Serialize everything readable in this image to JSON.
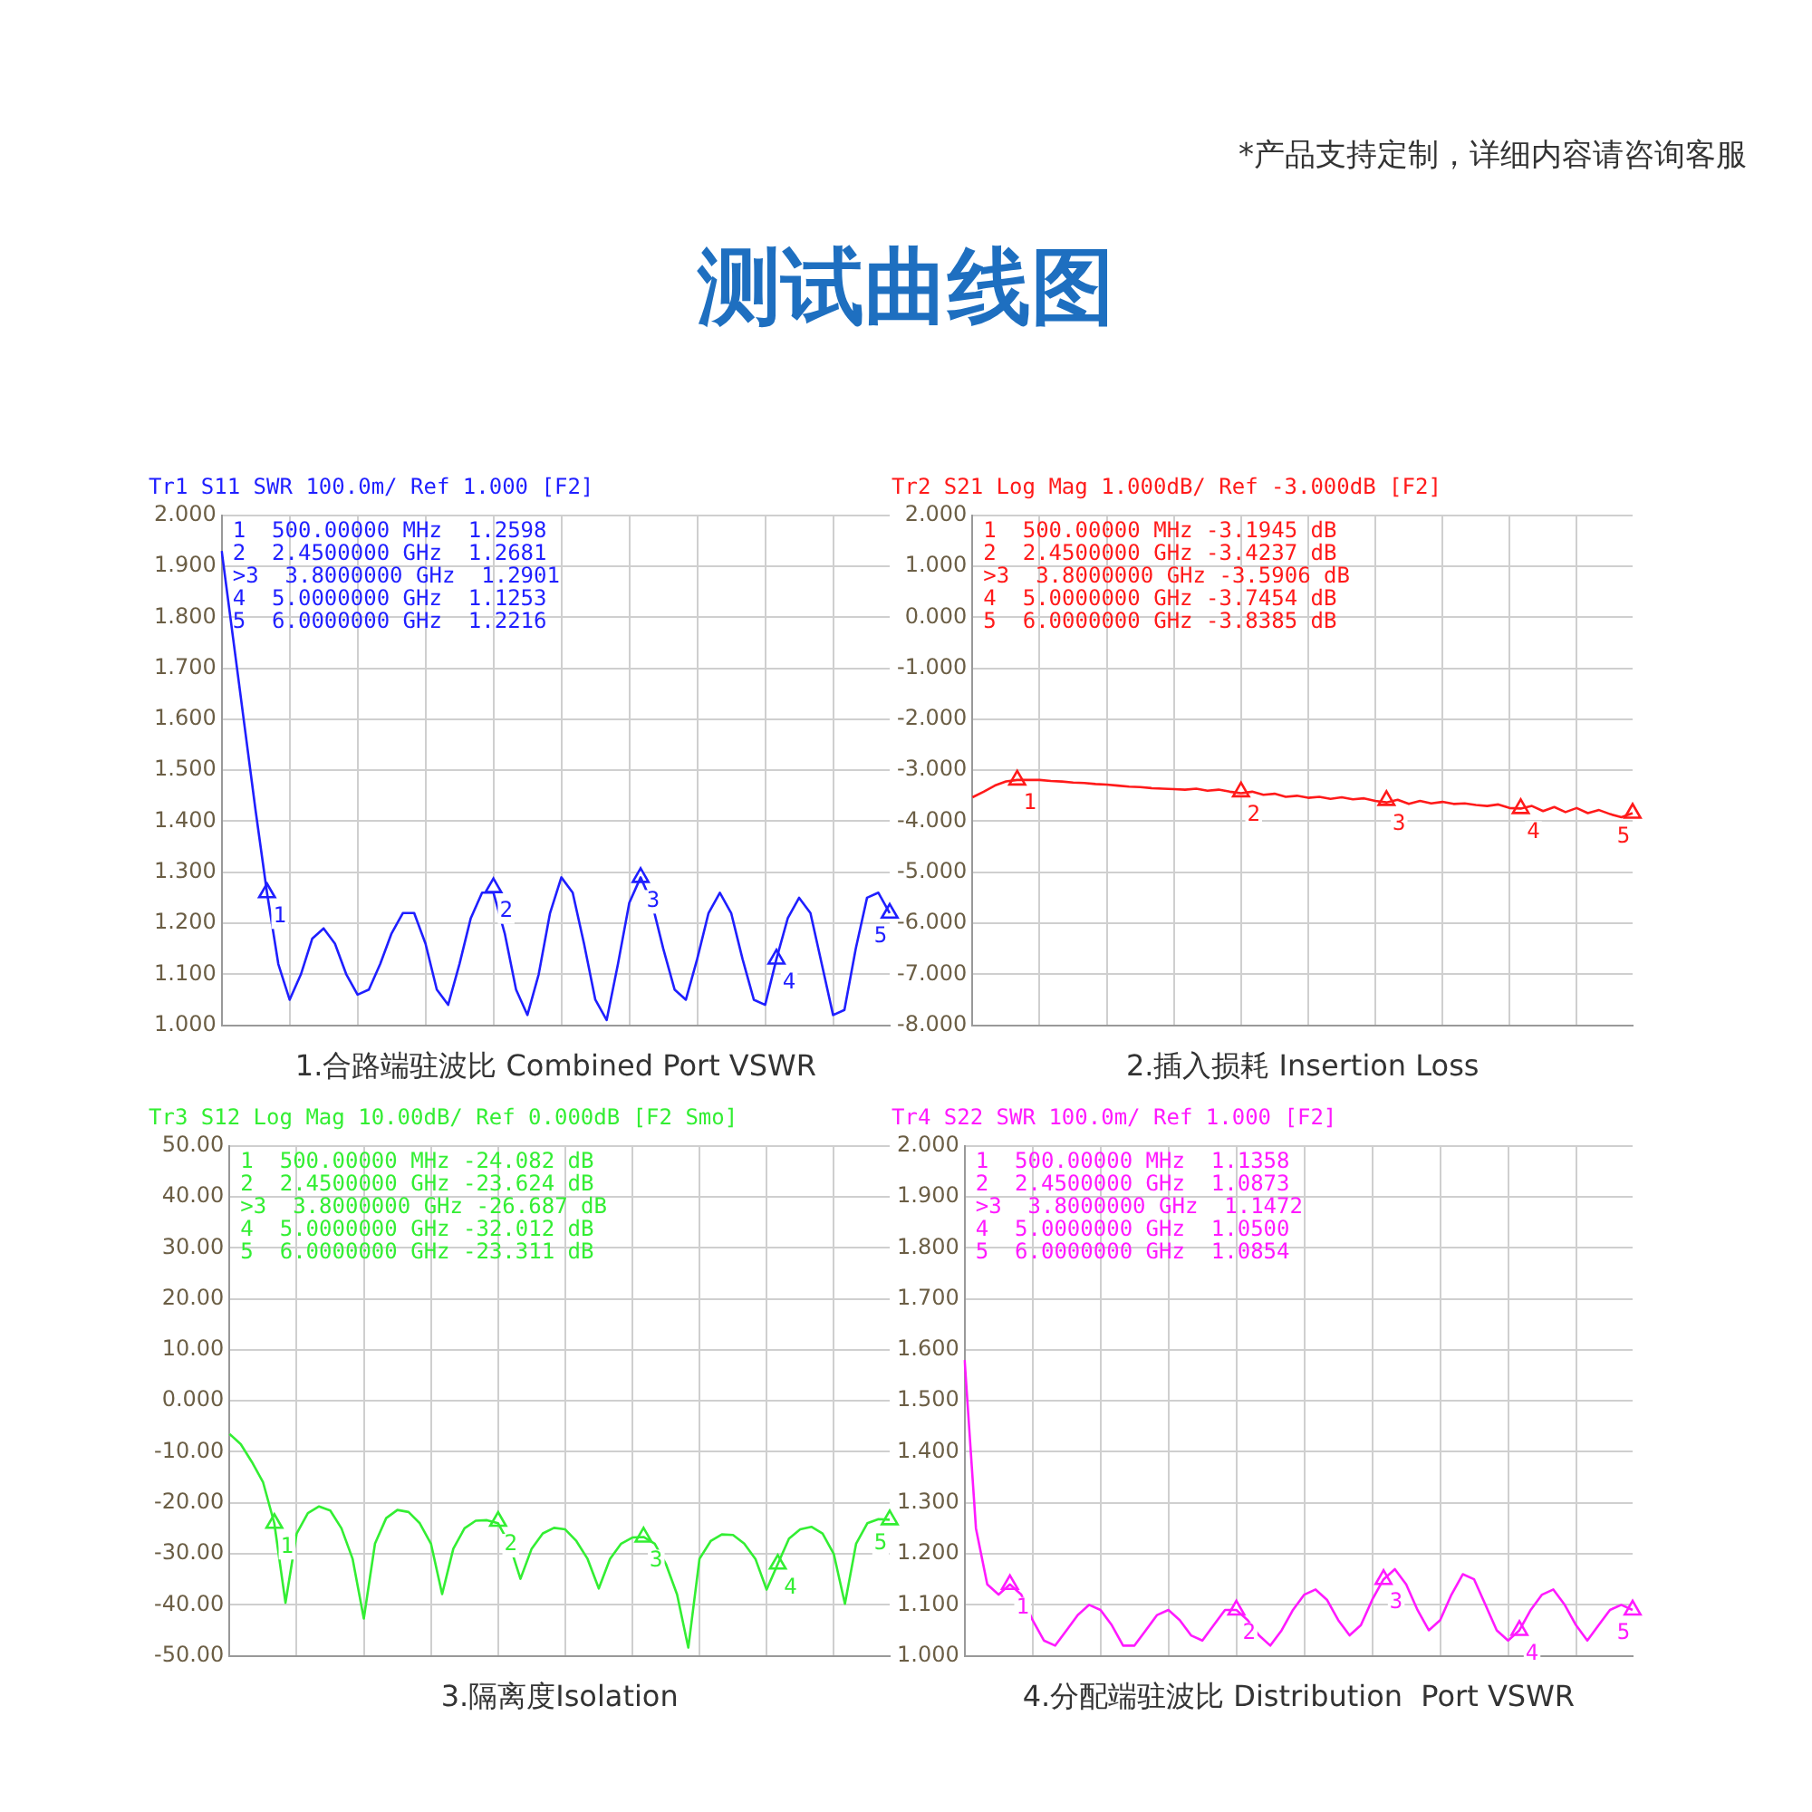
{
  "chart_data": [
    {
      "type": "other",
      "title": "测试曲线图",
      "annotations": [
        "*产品支持定制，详细内容请咨询客服"
      ]
    },
    {
      "type": "line",
      "title": "Tr1 S11 SWR 100.0m/ Ref 1.000 [F2]",
      "xlabel": "1.合路端驻波比 Combined Port VSWR",
      "tick_labels": "y",
      "grid": true,
      "categories": [
        null,
        null,
        null,
        null,
        null,
        null,
        null,
        null,
        null,
        null,
        null,
        null,
        null,
        null,
        null,
        null,
        null,
        null,
        null,
        null,
        null,
        null,
        null,
        null,
        null,
        null,
        null,
        null,
        null,
        null,
        null,
        null,
        null,
        null,
        null,
        null,
        null,
        null,
        null,
        null,
        null,
        null,
        null,
        null,
        null,
        null,
        null,
        null,
        null,
        null,
        null,
        null,
        null,
        null,
        null,
        null,
        null,
        null,
        null,
        null
      ],
      "ylim": [
        1,
        2
      ],
      "yticks": [
        {
          "value": 1,
          "label": "1.000"
        },
        {
          "value": 1.1,
          "label": "1.100"
        },
        {
          "value": 1.2,
          "label": "1.200"
        },
        {
          "value": 1.3,
          "label": "1.300"
        },
        {
          "value": 1.4,
          "label": "1.400"
        },
        {
          "value": 1.5,
          "label": "1.500"
        },
        {
          "value": 1.6,
          "label": "1.600"
        },
        {
          "value": 1.7,
          "label": "1.700"
        },
        {
          "value": 1.8,
          "label": "1.800"
        },
        {
          "value": 1.9,
          "label": "1.900"
        },
        {
          "value": 2,
          "label": "2.000"
        }
      ],
      "series": [
        {
          "color": "#1f1fff",
          "values": [
            1.93,
            1.76,
            1.59,
            1.42,
            1.26,
            1.12,
            1.05,
            1.1,
            1.17,
            1.19,
            1.16,
            1.1,
            1.06,
            1.07,
            1.12,
            1.18,
            1.22,
            1.22,
            1.16,
            1.07,
            1.04,
            1.12,
            1.21,
            1.26,
            1.26,
            1.18,
            1.07,
            1.02,
            1.1,
            1.22,
            1.29,
            1.26,
            1.16,
            1.05,
            1.01,
            1.12,
            1.24,
            1.29,
            1.24,
            1.15,
            1.07,
            1.05,
            1.13,
            1.22,
            1.26,
            1.22,
            1.13,
            1.05,
            1.04,
            1.13,
            1.21,
            1.25,
            1.22,
            1.12,
            1.02,
            1.03,
            1.15,
            1.25,
            1.26,
            1.22
          ]
        },
        {
          "type": "scatter",
          "marker": "triangle",
          "name": "1",
          "color": "#1f1fff",
          "values": [
            null,
            null,
            null,
            null,
            1.26,
            null,
            null,
            null,
            null,
            null,
            null,
            null,
            null,
            null,
            null,
            null,
            null,
            null,
            null,
            null,
            null,
            null,
            null,
            null,
            null,
            null,
            null,
            null,
            null,
            null,
            null,
            null,
            null,
            null,
            null,
            null,
            null,
            null,
            null,
            null,
            null,
            null,
            null,
            null,
            null,
            null,
            null,
            null,
            null,
            null,
            null,
            null,
            null,
            null,
            null,
            null,
            null,
            null,
            null,
            null
          ]
        },
        {
          "type": "scatter",
          "marker": "triangle",
          "name": "2",
          "color": "#1f1fff",
          "values": [
            null,
            null,
            null,
            null,
            null,
            null,
            null,
            null,
            null,
            null,
            null,
            null,
            null,
            null,
            null,
            null,
            null,
            null,
            null,
            null,
            null,
            null,
            null,
            null,
            1.27,
            null,
            null,
            null,
            null,
            null,
            null,
            null,
            null,
            null,
            null,
            null,
            null,
            null,
            null,
            null,
            null,
            null,
            null,
            null,
            null,
            null,
            null,
            null,
            null,
            null,
            null,
            null,
            null,
            null,
            null,
            null,
            null,
            null,
            null,
            null
          ]
        },
        {
          "type": "scatter",
          "marker": "triangle",
          "name": "3",
          "color": "#1f1fff",
          "values": [
            null,
            null,
            null,
            null,
            null,
            null,
            null,
            null,
            null,
            null,
            null,
            null,
            null,
            null,
            null,
            null,
            null,
            null,
            null,
            null,
            null,
            null,
            null,
            null,
            null,
            null,
            null,
            null,
            null,
            null,
            null,
            null,
            null,
            null,
            null,
            null,
            null,
            1.29,
            null,
            null,
            null,
            null,
            null,
            null,
            null,
            null,
            null,
            null,
            null,
            null,
            null,
            null,
            null,
            null,
            null,
            null,
            null,
            null,
            null,
            null
          ]
        },
        {
          "type": "scatter",
          "marker": "triangle",
          "name": "4",
          "color": "#1f1fff",
          "values": [
            null,
            null,
            null,
            null,
            null,
            null,
            null,
            null,
            null,
            null,
            null,
            null,
            null,
            null,
            null,
            null,
            null,
            null,
            null,
            null,
            null,
            null,
            null,
            null,
            null,
            null,
            null,
            null,
            null,
            null,
            null,
            null,
            null,
            null,
            null,
            null,
            null,
            null,
            null,
            null,
            null,
            null,
            null,
            null,
            null,
            null,
            null,
            null,
            null,
            1.13,
            null,
            null,
            null,
            null,
            null,
            null,
            null,
            null,
            null,
            null
          ]
        },
        {
          "type": "scatter",
          "marker": "triangle",
          "name": "5",
          "color": "#1f1fff",
          "values": [
            null,
            null,
            null,
            null,
            null,
            null,
            null,
            null,
            null,
            null,
            null,
            null,
            null,
            null,
            null,
            null,
            null,
            null,
            null,
            null,
            null,
            null,
            null,
            null,
            null,
            null,
            null,
            null,
            null,
            null,
            null,
            null,
            null,
            null,
            null,
            null,
            null,
            null,
            null,
            null,
            null,
            null,
            null,
            null,
            null,
            null,
            null,
            null,
            null,
            null,
            null,
            null,
            null,
            null,
            null,
            null,
            null,
            null,
            null,
            1.22
          ]
        }
      ],
      "annotations": [
        "1  500.00000 MHz  1.2598",
        "2  2.4500000 GHz  1.2681",
        ">3  3.8000000 GHz  1.2901",
        "4  5.0000000 GHz  1.1253",
        "5  6.0000000 GHz  1.2216"
      ]
    },
    {
      "type": "line",
      "title": "Tr2 S21 Log Mag 1.000dB/ Ref -3.000dB [F2]",
      "xlabel": "2.插入损耗 Insertion Loss",
      "tick_labels": "y",
      "grid": true,
      "categories": [
        null,
        null,
        null,
        null,
        null,
        null,
        null,
        null,
        null,
        null,
        null,
        null,
        null,
        null,
        null,
        null,
        null,
        null,
        null,
        null,
        null,
        null,
        null,
        null,
        null,
        null,
        null,
        null,
        null,
        null,
        null,
        null,
        null,
        null,
        null,
        null,
        null,
        null,
        null,
        null,
        null,
        null,
        null,
        null,
        null,
        null,
        null,
        null,
        null,
        null,
        null,
        null,
        null,
        null,
        null,
        null,
        null,
        null,
        null,
        null
      ],
      "ylim": [
        -8,
        2
      ],
      "yticks": [
        {
          "value": -8,
          "label": "-8.000"
        },
        {
          "value": -7,
          "label": "-7.000"
        },
        {
          "value": -6,
          "label": "-6.000"
        },
        {
          "value": -5,
          "label": "-5.000"
        },
        {
          "value": -4,
          "label": "-4.000"
        },
        {
          "value": -3,
          "label": "-3.000"
        },
        {
          "value": -2,
          "label": "-2.000"
        },
        {
          "value": -1,
          "label": "-1.000"
        },
        {
          "value": 0,
          "label": "0.000"
        },
        {
          "value": 1,
          "label": "1.000"
        },
        {
          "value": 2,
          "label": "2.000"
        }
      ],
      "series": [
        {
          "color": "#ff1a1a",
          "values": [
            -3.53,
            -3.42,
            -3.3,
            -3.22,
            -3.19,
            -3.19,
            -3.19,
            -3.21,
            -3.22,
            -3.24,
            -3.25,
            -3.27,
            -3.28,
            -3.3,
            -3.32,
            -3.33,
            -3.35,
            -3.36,
            -3.37,
            -3.38,
            -3.36,
            -3.4,
            -3.38,
            -3.42,
            -3.45,
            -3.42,
            -3.48,
            -3.46,
            -3.52,
            -3.5,
            -3.54,
            -3.52,
            -3.56,
            -3.53,
            -3.57,
            -3.55,
            -3.6,
            -3.63,
            -3.58,
            -3.66,
            -3.6,
            -3.65,
            -3.62,
            -3.66,
            -3.65,
            -3.68,
            -3.7,
            -3.67,
            -3.74,
            -3.75,
            -3.7,
            -3.8,
            -3.72,
            -3.82,
            -3.74,
            -3.84,
            -3.78,
            -3.86,
            -3.92,
            -3.84
          ]
        },
        {
          "type": "scatter",
          "marker": "triangle",
          "name": "1",
          "color": "#ff1a1a",
          "values": [
            null,
            null,
            null,
            null,
            -3.19,
            null,
            null,
            null,
            null,
            null,
            null,
            null,
            null,
            null,
            null,
            null,
            null,
            null,
            null,
            null,
            null,
            null,
            null,
            null,
            null,
            null,
            null,
            null,
            null,
            null,
            null,
            null,
            null,
            null,
            null,
            null,
            null,
            null,
            null,
            null,
            null,
            null,
            null,
            null,
            null,
            null,
            null,
            null,
            null,
            null,
            null,
            null,
            null,
            null,
            null,
            null,
            null,
            null,
            null,
            null
          ]
        },
        {
          "type": "scatter",
          "marker": "triangle",
          "name": "2",
          "color": "#ff1a1a",
          "values": [
            null,
            null,
            null,
            null,
            null,
            null,
            null,
            null,
            null,
            null,
            null,
            null,
            null,
            null,
            null,
            null,
            null,
            null,
            null,
            null,
            null,
            null,
            null,
            null,
            -3.42,
            null,
            null,
            null,
            null,
            null,
            null,
            null,
            null,
            null,
            null,
            null,
            null,
            null,
            null,
            null,
            null,
            null,
            null,
            null,
            null,
            null,
            null,
            null,
            null,
            null,
            null,
            null,
            null,
            null,
            null,
            null,
            null,
            null,
            null,
            null
          ]
        },
        {
          "type": "scatter",
          "marker": "triangle",
          "name": "3",
          "color": "#ff1a1a",
          "values": [
            null,
            null,
            null,
            null,
            null,
            null,
            null,
            null,
            null,
            null,
            null,
            null,
            null,
            null,
            null,
            null,
            null,
            null,
            null,
            null,
            null,
            null,
            null,
            null,
            null,
            null,
            null,
            null,
            null,
            null,
            null,
            null,
            null,
            null,
            null,
            null,
            null,
            -3.59,
            null,
            null,
            null,
            null,
            null,
            null,
            null,
            null,
            null,
            null,
            null,
            null,
            null,
            null,
            null,
            null,
            null,
            null,
            null,
            null,
            null,
            null
          ]
        },
        {
          "type": "scatter",
          "marker": "triangle",
          "name": "4",
          "color": "#ff1a1a",
          "values": [
            null,
            null,
            null,
            null,
            null,
            null,
            null,
            null,
            null,
            null,
            null,
            null,
            null,
            null,
            null,
            null,
            null,
            null,
            null,
            null,
            null,
            null,
            null,
            null,
            null,
            null,
            null,
            null,
            null,
            null,
            null,
            null,
            null,
            null,
            null,
            null,
            null,
            null,
            null,
            null,
            null,
            null,
            null,
            null,
            null,
            null,
            null,
            null,
            null,
            -3.75,
            null,
            null,
            null,
            null,
            null,
            null,
            null,
            null,
            null,
            null
          ]
        },
        {
          "type": "scatter",
          "marker": "triangle",
          "name": "5",
          "color": "#ff1a1a",
          "values": [
            null,
            null,
            null,
            null,
            null,
            null,
            null,
            null,
            null,
            null,
            null,
            null,
            null,
            null,
            null,
            null,
            null,
            null,
            null,
            null,
            null,
            null,
            null,
            null,
            null,
            null,
            null,
            null,
            null,
            null,
            null,
            null,
            null,
            null,
            null,
            null,
            null,
            null,
            null,
            null,
            null,
            null,
            null,
            null,
            null,
            null,
            null,
            null,
            null,
            null,
            null,
            null,
            null,
            null,
            null,
            null,
            null,
            null,
            null,
            -3.84
          ]
        }
      ],
      "annotations": [
        "1  500.00000 MHz -3.1945 dB",
        "2  2.4500000 GHz -3.4237 dB",
        ">3  3.8000000 GHz -3.5906 dB",
        "4  5.0000000 GHz -3.7454 dB",
        "5  6.0000000 GHz -3.8385 dB"
      ]
    },
    {
      "type": "line",
      "title": "Tr3 S12 Log Mag 10.00dB/ Ref 0.000dB [F2 Smo]",
      "xlabel": "3.隔离度Isolation",
      "tick_labels": "y",
      "grid": true,
      "categories": [
        null,
        null,
        null,
        null,
        null,
        null,
        null,
        null,
        null,
        null,
        null,
        null,
        null,
        null,
        null,
        null,
        null,
        null,
        null,
        null,
        null,
        null,
        null,
        null,
        null,
        null,
        null,
        null,
        null,
        null,
        null,
        null,
        null,
        null,
        null,
        null,
        null,
        null,
        null,
        null,
        null,
        null,
        null,
        null,
        null,
        null,
        null,
        null,
        null,
        null,
        null,
        null,
        null,
        null,
        null,
        null,
        null,
        null,
        null,
        null
      ],
      "ylim": [
        -50,
        50
      ],
      "yticks": [
        {
          "value": -50,
          "label": "-50.00"
        },
        {
          "value": -40,
          "label": "-40.00"
        },
        {
          "value": -30,
          "label": "-30.00"
        },
        {
          "value": -20,
          "label": "-20.00"
        },
        {
          "value": -10,
          "label": "-10.00"
        },
        {
          "value": 0,
          "label": "0.000"
        },
        {
          "value": 10,
          "label": "10.00"
        },
        {
          "value": 20,
          "label": "20.00"
        },
        {
          "value": 30,
          "label": "30.00"
        },
        {
          "value": 40,
          "label": "40.00"
        },
        {
          "value": 50,
          "label": "50.00"
        }
      ],
      "series": [
        {
          "color": "#33ee33",
          "values": [
            -6.5,
            -8.5,
            -12,
            -16,
            -24,
            -39.6,
            -26,
            -22,
            -20.7,
            -21.5,
            -25,
            -31,
            -42.7,
            -28,
            -23,
            -21.4,
            -21.8,
            -24,
            -28,
            -37.9,
            -29,
            -25,
            -23.5,
            -23.4,
            -24,
            -28,
            -34.9,
            -29,
            -26,
            -24.9,
            -25.2,
            -27.5,
            -31,
            -36.8,
            -31,
            -28,
            -26.8,
            -26.7,
            -28,
            -32,
            -38,
            -48.4,
            -31,
            -27.5,
            -26.2,
            -26.3,
            -28,
            -31,
            -37,
            -32,
            -27,
            -25.2,
            -24.7,
            -26,
            -30,
            -39.8,
            -28,
            -24,
            -23.2,
            -23.3
          ]
        },
        {
          "type": "scatter",
          "marker": "triangle",
          "name": "1",
          "color": "#33ee33",
          "values": [
            null,
            null,
            null,
            null,
            -24,
            null,
            null,
            null,
            null,
            null,
            null,
            null,
            null,
            null,
            null,
            null,
            null,
            null,
            null,
            null,
            null,
            null,
            null,
            null,
            null,
            null,
            null,
            null,
            null,
            null,
            null,
            null,
            null,
            null,
            null,
            null,
            null,
            null,
            null,
            null,
            null,
            null,
            null,
            null,
            null,
            null,
            null,
            null,
            null,
            null,
            null,
            null,
            null,
            null,
            null,
            null,
            null,
            null,
            null,
            null
          ]
        },
        {
          "type": "scatter",
          "marker": "triangle",
          "name": "2",
          "color": "#33ee33",
          "values": [
            null,
            null,
            null,
            null,
            null,
            null,
            null,
            null,
            null,
            null,
            null,
            null,
            null,
            null,
            null,
            null,
            null,
            null,
            null,
            null,
            null,
            null,
            null,
            null,
            -23.6,
            null,
            null,
            null,
            null,
            null,
            null,
            null,
            null,
            null,
            null,
            null,
            null,
            null,
            null,
            null,
            null,
            null,
            null,
            null,
            null,
            null,
            null,
            null,
            null,
            null,
            null,
            null,
            null,
            null,
            null,
            null,
            null,
            null,
            null,
            null
          ]
        },
        {
          "type": "scatter",
          "marker": "triangle",
          "name": "3",
          "color": "#33ee33",
          "values": [
            null,
            null,
            null,
            null,
            null,
            null,
            null,
            null,
            null,
            null,
            null,
            null,
            null,
            null,
            null,
            null,
            null,
            null,
            null,
            null,
            null,
            null,
            null,
            null,
            null,
            null,
            null,
            null,
            null,
            null,
            null,
            null,
            null,
            null,
            null,
            null,
            null,
            -26.7,
            null,
            null,
            null,
            null,
            null,
            null,
            null,
            null,
            null,
            null,
            null,
            null,
            null,
            null,
            null,
            null,
            null,
            null,
            null,
            null,
            null,
            null
          ]
        },
        {
          "type": "scatter",
          "marker": "triangle",
          "name": "4",
          "color": "#33ee33",
          "values": [
            null,
            null,
            null,
            null,
            null,
            null,
            null,
            null,
            null,
            null,
            null,
            null,
            null,
            null,
            null,
            null,
            null,
            null,
            null,
            null,
            null,
            null,
            null,
            null,
            null,
            null,
            null,
            null,
            null,
            null,
            null,
            null,
            null,
            null,
            null,
            null,
            null,
            null,
            null,
            null,
            null,
            null,
            null,
            null,
            null,
            null,
            null,
            null,
            null,
            -32,
            null,
            null,
            null,
            null,
            null,
            null,
            null,
            null,
            null,
            null
          ]
        },
        {
          "type": "scatter",
          "marker": "triangle",
          "name": "5",
          "color": "#33ee33",
          "values": [
            null,
            null,
            null,
            null,
            null,
            null,
            null,
            null,
            null,
            null,
            null,
            null,
            null,
            null,
            null,
            null,
            null,
            null,
            null,
            null,
            null,
            null,
            null,
            null,
            null,
            null,
            null,
            null,
            null,
            null,
            null,
            null,
            null,
            null,
            null,
            null,
            null,
            null,
            null,
            null,
            null,
            null,
            null,
            null,
            null,
            null,
            null,
            null,
            null,
            null,
            null,
            null,
            null,
            null,
            null,
            null,
            null,
            null,
            null,
            -23.3
          ]
        }
      ],
      "annotations": [
        "1  500.00000 MHz -24.082 dB",
        "2  2.4500000 GHz -23.624 dB",
        ">3  3.8000000 GHz -26.687 dB",
        "4  5.0000000 GHz -32.012 dB",
        "5  6.0000000 GHz -23.311 dB"
      ]
    },
    {
      "type": "line",
      "title": "Tr4 S22 SWR 100.0m/ Ref 1.000 [F2]",
      "xlabel": "4.分配端驻波比 Distribution  Port VSWR",
      "tick_labels": "y",
      "grid": true,
      "categories": [
        null,
        null,
        null,
        null,
        null,
        null,
        null,
        null,
        null,
        null,
        null,
        null,
        null,
        null,
        null,
        null,
        null,
        null,
        null,
        null,
        null,
        null,
        null,
        null,
        null,
        null,
        null,
        null,
        null,
        null,
        null,
        null,
        null,
        null,
        null,
        null,
        null,
        null,
        null,
        null,
        null,
        null,
        null,
        null,
        null,
        null,
        null,
        null,
        null,
        null,
        null,
        null,
        null,
        null,
        null,
        null,
        null,
        null,
        null,
        null
      ],
      "ylim": [
        1,
        2
      ],
      "yticks": [
        {
          "value": 1,
          "label": "1.000"
        },
        {
          "value": 1.1,
          "label": "1.100"
        },
        {
          "value": 1.2,
          "label": "1.200"
        },
        {
          "value": 1.3,
          "label": "1.300"
        },
        {
          "value": 1.4,
          "label": "1.400"
        },
        {
          "value": 1.5,
          "label": "1.500"
        },
        {
          "value": 1.6,
          "label": "1.600"
        },
        {
          "value": 1.7,
          "label": "1.700"
        },
        {
          "value": 1.8,
          "label": "1.800"
        },
        {
          "value": 1.9,
          "label": "1.900"
        },
        {
          "value": 2,
          "label": "2.000"
        }
      ],
      "series": [
        {
          "color": "#ff1aff",
          "values": [
            1.58,
            1.25,
            1.14,
            1.12,
            1.14,
            1.12,
            1.07,
            1.03,
            1.02,
            1.05,
            1.08,
            1.1,
            1.09,
            1.06,
            1.02,
            1.02,
            1.05,
            1.08,
            1.09,
            1.07,
            1.04,
            1.03,
            1.06,
            1.09,
            1.09,
            1.07,
            1.04,
            1.02,
            1.05,
            1.09,
            1.12,
            1.13,
            1.11,
            1.07,
            1.04,
            1.06,
            1.11,
            1.15,
            1.17,
            1.14,
            1.09,
            1.05,
            1.07,
            1.12,
            1.16,
            1.15,
            1.1,
            1.05,
            1.03,
            1.05,
            1.09,
            1.12,
            1.13,
            1.1,
            1.06,
            1.03,
            1.06,
            1.09,
            1.1,
            1.09
          ]
        },
        {
          "type": "scatter",
          "marker": "triangle",
          "name": "1",
          "color": "#ff1aff",
          "values": [
            null,
            null,
            null,
            null,
            1.14,
            null,
            null,
            null,
            null,
            null,
            null,
            null,
            null,
            null,
            null,
            null,
            null,
            null,
            null,
            null,
            null,
            null,
            null,
            null,
            null,
            null,
            null,
            null,
            null,
            null,
            null,
            null,
            null,
            null,
            null,
            null,
            null,
            null,
            null,
            null,
            null,
            null,
            null,
            null,
            null,
            null,
            null,
            null,
            null,
            null,
            null,
            null,
            null,
            null,
            null,
            null,
            null,
            null,
            null,
            null
          ]
        },
        {
          "type": "scatter",
          "marker": "triangle",
          "name": "2",
          "color": "#ff1aff",
          "values": [
            null,
            null,
            null,
            null,
            null,
            null,
            null,
            null,
            null,
            null,
            null,
            null,
            null,
            null,
            null,
            null,
            null,
            null,
            null,
            null,
            null,
            null,
            null,
            null,
            1.09,
            null,
            null,
            null,
            null,
            null,
            null,
            null,
            null,
            null,
            null,
            null,
            null,
            null,
            null,
            null,
            null,
            null,
            null,
            null,
            null,
            null,
            null,
            null,
            null,
            null,
            null,
            null,
            null,
            null,
            null,
            null,
            null,
            null,
            null,
            null
          ]
        },
        {
          "type": "scatter",
          "marker": "triangle",
          "name": "3",
          "color": "#ff1aff",
          "values": [
            null,
            null,
            null,
            null,
            null,
            null,
            null,
            null,
            null,
            null,
            null,
            null,
            null,
            null,
            null,
            null,
            null,
            null,
            null,
            null,
            null,
            null,
            null,
            null,
            null,
            null,
            null,
            null,
            null,
            null,
            null,
            null,
            null,
            null,
            null,
            null,
            null,
            1.15,
            null,
            null,
            null,
            null,
            null,
            null,
            null,
            null,
            null,
            null,
            null,
            null,
            null,
            null,
            null,
            null,
            null,
            null,
            null,
            null,
            null,
            null
          ]
        },
        {
          "type": "scatter",
          "marker": "triangle",
          "name": "4",
          "color": "#ff1aff",
          "values": [
            null,
            null,
            null,
            null,
            null,
            null,
            null,
            null,
            null,
            null,
            null,
            null,
            null,
            null,
            null,
            null,
            null,
            null,
            null,
            null,
            null,
            null,
            null,
            null,
            null,
            null,
            null,
            null,
            null,
            null,
            null,
            null,
            null,
            null,
            null,
            null,
            null,
            null,
            null,
            null,
            null,
            null,
            null,
            null,
            null,
            null,
            null,
            null,
            null,
            1.05,
            null,
            null,
            null,
            null,
            null,
            null,
            null,
            null,
            null,
            null
          ]
        },
        {
          "type": "scatter",
          "marker": "triangle",
          "name": "5",
          "color": "#ff1aff",
          "values": [
            null,
            null,
            null,
            null,
            null,
            null,
            null,
            null,
            null,
            null,
            null,
            null,
            null,
            null,
            null,
            null,
            null,
            null,
            null,
            null,
            null,
            null,
            null,
            null,
            null,
            null,
            null,
            null,
            null,
            null,
            null,
            null,
            null,
            null,
            null,
            null,
            null,
            null,
            null,
            null,
            null,
            null,
            null,
            null,
            null,
            null,
            null,
            null,
            null,
            null,
            null,
            null,
            null,
            null,
            null,
            null,
            null,
            null,
            null,
            1.09
          ]
        }
      ],
      "annotations": [
        "1  500.00000 MHz  1.1358",
        "2  2.4500000 GHz  1.0873",
        ">3  3.8000000 GHz  1.1472",
        "4  5.0000000 GHz  1.0500",
        "5  6.0000000 GHz  1.0854"
      ]
    }
  ]
}
